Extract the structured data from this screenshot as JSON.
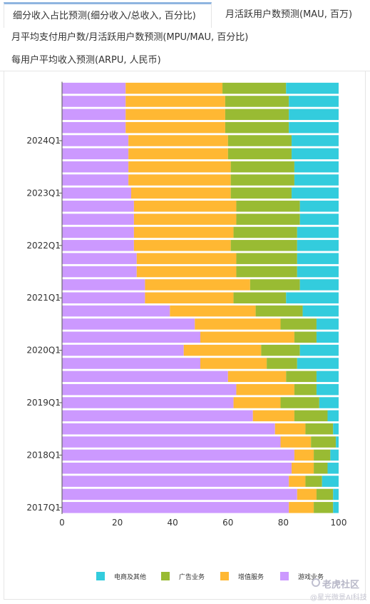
{
  "tabs": [
    {
      "label": "细分收入占比预测(细分收入/总收入, 百分比)"
    },
    {
      "label": "月活跃用户数预测(MAU, 百万)"
    },
    {
      "label": "月平均支付用户数/月活跃用户数预测(MPU/MAU, 百分比)"
    },
    {
      "label": "每用户平均收入预测(ARPU, 人民币)"
    }
  ],
  "watermark": {
    "name": "老虎社区",
    "sub": "@星光微景AI科技"
  },
  "colors": {
    "tab_accent": "#8fb5e0"
  },
  "chart_data": {
    "type": "bar",
    "orientation": "horizontal",
    "stacked": true,
    "percent_stacked": true,
    "xlim": [
      0,
      100
    ],
    "xticks": [
      0,
      20,
      40,
      60,
      80,
      100
    ],
    "ytick_labels": [
      "2017Q1",
      "2018Q1",
      "2019Q1",
      "2020Q1",
      "2021Q1",
      "2022Q1",
      "2023Q1",
      "2024Q1"
    ],
    "ytick_rows": [
      0,
      4,
      8,
      12,
      16,
      20,
      24,
      28
    ],
    "grid": false,
    "legend_position": "bottom",
    "series": [
      {
        "name": "游戏业务",
        "color": "#cc99ff",
        "values": [
          82,
          85,
          82,
          83,
          84,
          79,
          77,
          69,
          62,
          63,
          60,
          50,
          44,
          50,
          48,
          39,
          30,
          30,
          27,
          27,
          26,
          26,
          26,
          26,
          25,
          24,
          24,
          24,
          24,
          23,
          23,
          23,
          23
        ]
      },
      {
        "name": "增值服务",
        "color": "#ffb833",
        "values": [
          9,
          7,
          6,
          8,
          7,
          11,
          11,
          15,
          17,
          21,
          21,
          24,
          28,
          34,
          31,
          31,
          32,
          38,
          36,
          36,
          35,
          36,
          37,
          37,
          36,
          37,
          37,
          36,
          36,
          36,
          36,
          36,
          35
        ]
      },
      {
        "name": "广告业务",
        "color": "#99bb33",
        "values": [
          7,
          6,
          6,
          5,
          6,
          9,
          10,
          12,
          14,
          8,
          11,
          11,
          14,
          8,
          13,
          17,
          19,
          18,
          22,
          22,
          24,
          23,
          23,
          23,
          22,
          23,
          23,
          23,
          23,
          23,
          23,
          23,
          23
        ]
      },
      {
        "name": "电商及其他",
        "color": "#33ccdd",
        "values": [
          2,
          2,
          6,
          4,
          3,
          1,
          2,
          4,
          7,
          8,
          8,
          15,
          14,
          8,
          8,
          13,
          19,
          14,
          15,
          15,
          15,
          15,
          14,
          14,
          17,
          16,
          16,
          17,
          17,
          18,
          18,
          18,
          19
        ]
      }
    ]
  }
}
